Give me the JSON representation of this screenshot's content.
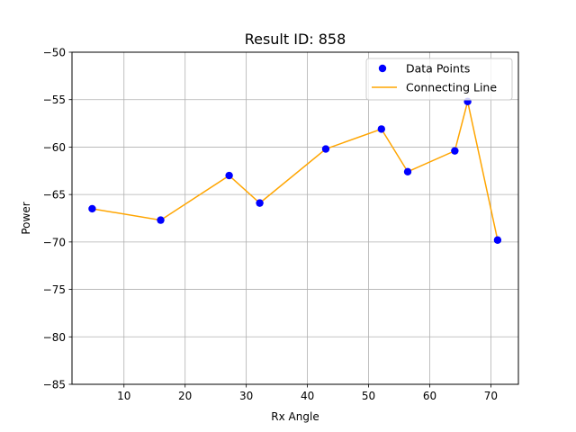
{
  "chart_data": {
    "type": "scatter",
    "title": "Result ID: 858",
    "xlabel": "Rx Angle",
    "ylabel": "Power",
    "xlim": [
      1.5,
      74.5
    ],
    "ylim": [
      -85,
      -50
    ],
    "xticks": [
      10,
      20,
      30,
      40,
      50,
      60,
      70
    ],
    "yticks": [
      -50,
      -55,
      -60,
      -65,
      -70,
      -75,
      -80,
      -85
    ],
    "grid": true,
    "legend_position": "top-right",
    "series": [
      {
        "name": "Data Points",
        "kind": "scatter",
        "color": "#0000ff",
        "x": [
          4.8,
          16.0,
          27.2,
          32.2,
          43.0,
          52.1,
          56.4,
          64.1,
          66.2,
          71.1
        ],
        "y": [
          -66.5,
          -67.7,
          -63.0,
          -65.9,
          -60.2,
          -58.1,
          -62.6,
          -60.4,
          -55.2,
          -69.8
        ]
      },
      {
        "name": "Connecting Line",
        "kind": "line",
        "color": "#ffa500",
        "x": [
          4.8,
          16.0,
          27.2,
          32.2,
          43.0,
          52.1,
          56.4,
          64.1,
          66.2,
          71.1
        ],
        "y": [
          -66.5,
          -67.7,
          -63.0,
          -65.9,
          -60.2,
          -58.1,
          -62.6,
          -60.4,
          -55.2,
          -69.8
        ]
      }
    ]
  }
}
